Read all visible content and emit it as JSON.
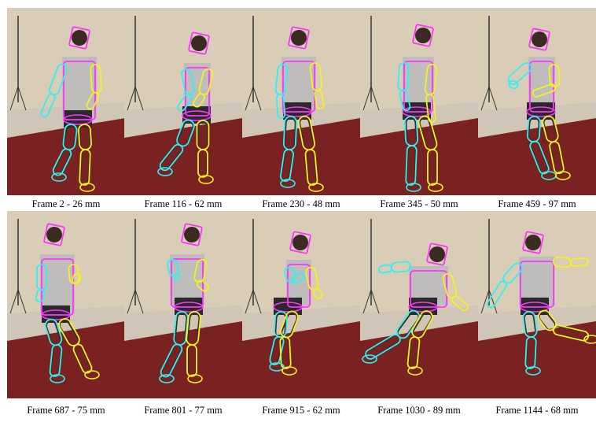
{
  "colors": {
    "magenta": "#ff33ff",
    "cyan": "#33f0f0",
    "yellow": "#f5f020",
    "wall": "#d9cdb8",
    "carpet": "#7a2222",
    "tile": "#cfc6b8"
  },
  "frames": [
    {
      "caption": "Frame 2 - 26 mm"
    },
    {
      "caption": "Frame 116 - 62 mm"
    },
    {
      "caption": "Frame 230 - 48 mm"
    },
    {
      "caption": "Frame 345 - 50 mm"
    },
    {
      "caption": "Frame 459 - 97 mm"
    },
    {
      "caption": "Frame 687 - 75 mm"
    },
    {
      "caption": "Frame 801 - 77 mm"
    },
    {
      "caption": "Frame 915 - 62 mm"
    },
    {
      "caption": "Frame 1030 - 89 mm"
    },
    {
      "caption": "Frame 1144 - 68 mm"
    }
  ]
}
